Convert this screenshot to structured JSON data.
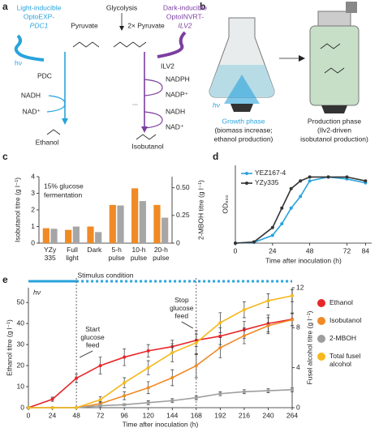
{
  "panel_labels": [
    "a",
    "b",
    "c",
    "d",
    "e"
  ],
  "panel_a": {
    "light_promoter": [
      "Light-inducible",
      "OptoEXP-",
      "PDC1"
    ],
    "dark_promoter": [
      "Dark-inducible",
      "OptoINVRT-",
      "ILV2"
    ],
    "glycolysis": "Glycolysis",
    "pyruvate": "Pyruvate",
    "two_pyruvate": "2× Pyruvate",
    "light": "hν",
    "pdc": "PDC",
    "ilv2": "ILV2",
    "ethanol_cofactors": [
      "NADH",
      "NAD⁺"
    ],
    "ethanol": "Ethanol",
    "isobutanol_cofactors": [
      "NADPH",
      "NADP⁺",
      "...",
      "NADH",
      "NAD⁺"
    ],
    "isobutanol": "Isobutanol"
  },
  "panel_b": {
    "light": "hν",
    "growth_phase": "Growth phase",
    "growth_note": [
      "(biomass increase;",
      "ethanol production)"
    ],
    "production_phase": "Production phase",
    "production_note": [
      "(Ilv2-driven",
      "isobutanol production)"
    ]
  },
  "chart_data": [
    {
      "type": "bar",
      "note": [
        "15% glucose",
        "fermentation"
      ],
      "xlabel": "Stimulus condition",
      "ylabel": "Isobutanol titre (g l⁻¹)",
      "y2label": "2-MBOH titre (g l⁻¹)",
      "categories": [
        "YZy 335",
        "Full light",
        "Dark",
        "5-h pulse",
        "10-h pulse",
        "20-h pulse"
      ],
      "ylim": [
        0,
        4
      ],
      "yticks": [
        0,
        1,
        2,
        3,
        4
      ],
      "y2lim": [
        0,
        0.6
      ],
      "y2ticks": [
        0,
        0.25,
        {
          "value": 0.5,
          "label": "0.50"
        }
      ],
      "series": [
        {
          "name": "Isobutanol",
          "color": "#f08a24",
          "values": [
            0.9,
            0.8,
            1.0,
            2.3,
            3.3,
            2.3
          ]
        },
        {
          "name": "2-MBOH",
          "color": "#a6a6a6",
          "axis": "y2",
          "values": [
            0.13,
            0.15,
            0.1,
            0.34,
            0.38,
            0.23
          ]
        }
      ]
    },
    {
      "type": "line",
      "xlabel": "Time after inoculation (h)",
      "ylabel": "OD₆₀₀",
      "x": [
        0,
        12,
        24,
        30,
        36,
        42,
        48,
        60,
        72,
        84
      ],
      "xlim": [
        0,
        88
      ],
      "xticks": [
        0,
        24,
        48,
        72,
        84
      ],
      "ylim": [
        0,
        20
      ],
      "legend": "upper left",
      "series": [
        {
          "name": "YEZ167-4",
          "color": "#29a3dc",
          "values": [
            0,
            0.2,
            2,
            5,
            9,
            12,
            16,
            17,
            16.5,
            15.5
          ]
        },
        {
          "name": "YZy335",
          "color": "#333333",
          "values": [
            0,
            0.3,
            4,
            9,
            14,
            16,
            17,
            17,
            17,
            16
          ]
        }
      ]
    },
    {
      "type": "line",
      "xlabel": "Time after inoculation (h)",
      "ylabel": "Ethanol titre (g l⁻¹)",
      "y2label": "Fusel alcohol titre (g l⁻¹)",
      "x": [
        0,
        24,
        48,
        72,
        96,
        120,
        144,
        168,
        192,
        216,
        240,
        264
      ],
      "xlim": [
        0,
        264
      ],
      "xticks": [
        0,
        24,
        48,
        72,
        96,
        120,
        144,
        168,
        192,
        216,
        240,
        264
      ],
      "ylim": [
        0,
        57
      ],
      "yticks": [
        0,
        10,
        20,
        30,
        40,
        50
      ],
      "y2lim": [
        0,
        12
      ],
      "y2ticks": [
        0,
        4,
        8,
        12
      ],
      "light_label": "hν",
      "light_color": "#29a3dc",
      "feed_start": 48,
      "feed_stop": 168,
      "annotations": [
        "Start glucose feed",
        "Stop glucose feed"
      ],
      "legend": "right",
      "series": [
        {
          "name": "Ethanol",
          "color": "#e8262a",
          "values": [
            0,
            4,
            14,
            20,
            24,
            27,
            29,
            32,
            34,
            37,
            40,
            42
          ],
          "errors": [
            0.5,
            1,
            2,
            4,
            4,
            3,
            3,
            3,
            4,
            4,
            4,
            3
          ]
        },
        {
          "name": "Isobutanol",
          "color": "#f08a24",
          "axis": "y2",
          "values": [
            0,
            0,
            0,
            0.4,
            1.2,
            2,
            3,
            4.2,
            6,
            7.2,
            8.2,
            8.8
          ],
          "errors": [
            0,
            0,
            0,
            0.2,
            0.4,
            0.6,
            0.8,
            1.2,
            1,
            0.8,
            0.8,
            0.6
          ]
        },
        {
          "name": "2-MBOH",
          "color": "#9e9e9e",
          "axis": "y2",
          "values": [
            0,
            0,
            0,
            0.2,
            0.3,
            0.5,
            0.7,
            1,
            1.4,
            1.6,
            1.7,
            1.8
          ],
          "errors": [
            0,
            0,
            0,
            0.1,
            0.1,
            0.2,
            0.2,
            0.2,
            0.2,
            0.2,
            0.2,
            0.2
          ]
        },
        {
          "name": "Total fusel alcohol",
          "color": "#f6b81a",
          "axis": "y2",
          "values": [
            0,
            0,
            0,
            0.8,
            2.5,
            4,
            5.5,
            6.5,
            8.5,
            9.8,
            10.7,
            11.2
          ],
          "errors": [
            0,
            0,
            0,
            0.3,
            0.5,
            0.7,
            0.9,
            1.2,
            1,
            0.8,
            0.7,
            0.6
          ]
        }
      ]
    }
  ]
}
